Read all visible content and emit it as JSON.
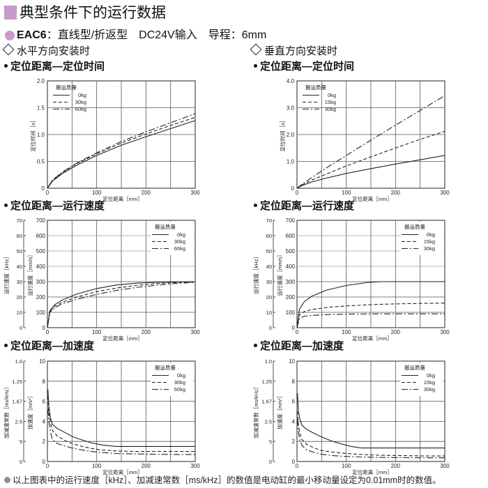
{
  "colors": {
    "accent": "#c79ac8",
    "grid": "#555555",
    "curve": "#222222",
    "highlight_grid": "#9a9a9a"
  },
  "header": {
    "title": "典型条件下的运行数据"
  },
  "model": {
    "name": "EAC6",
    "desc": "：直线型/折返型　DC24V输入　导程：6mm"
  },
  "orientation": {
    "left": "水平方向安装时",
    "right": "垂直方向安装时"
  },
  "sections": {
    "time": "定位距离—定位时间",
    "speed": "定位距离—运行速度",
    "accel": "定位距离—加速度"
  },
  "footnote": "以上图表中的运行速度［kHz］、加减速常数［ms/kHz］的数值是电动缸的最小移动量设定为0.01mm时的数值。",
  "chart_data": [
    {
      "id": "h-time",
      "type": "line",
      "title": "",
      "xlabel": "定位距离［mm］",
      "ylabel": "定位时间［s］",
      "xlim": [
        0,
        300
      ],
      "ylim": [
        0,
        2.0
      ],
      "xticks": [
        "0",
        "100",
        "200",
        "300"
      ],
      "yticks": [
        "0",
        "0.5",
        "1.0",
        "1.5",
        "2.0"
      ],
      "legend": {
        "title": "搬运质量",
        "position": "top-left",
        "entries": [
          "0kg",
          "30kg",
          "60kg"
        ]
      },
      "series": [
        {
          "name": "0kg",
          "dash": "solid",
          "x": [
            0,
            10,
            30,
            60,
            100,
            150,
            200,
            250,
            300
          ],
          "y": [
            0,
            0.13,
            0.27,
            0.43,
            0.61,
            0.8,
            0.96,
            1.11,
            1.26
          ]
        },
        {
          "name": "30kg",
          "dash": "dash",
          "x": [
            0,
            10,
            30,
            60,
            100,
            150,
            200,
            250,
            300
          ],
          "y": [
            0,
            0.14,
            0.29,
            0.46,
            0.64,
            0.84,
            1.01,
            1.17,
            1.32
          ]
        },
        {
          "name": "60kg",
          "dash": "dashdot",
          "x": [
            0,
            10,
            30,
            60,
            100,
            150,
            200,
            250,
            300
          ],
          "y": [
            0,
            0.15,
            0.3,
            0.47,
            0.66,
            0.87,
            1.05,
            1.22,
            1.39
          ]
        }
      ]
    },
    {
      "id": "v-time",
      "type": "line",
      "title": "",
      "xlabel": "定位距离［mm］",
      "ylabel": "定位时间［s］",
      "xlim": [
        0,
        300
      ],
      "ylim": [
        0,
        4.0
      ],
      "xticks": [
        "0",
        "100",
        "200",
        "300"
      ],
      "yticks": [
        "0",
        "1.0",
        "2.0",
        "3.0",
        "4.0"
      ],
      "legend": {
        "title": "搬运质量",
        "position": "top-left",
        "entries": [
          "0kg",
          "15kg",
          "30kg"
        ]
      },
      "series": [
        {
          "name": "0kg",
          "dash": "solid",
          "x": [
            0,
            10,
            30,
            60,
            100,
            150,
            200,
            250,
            300
          ],
          "y": [
            0,
            0.1,
            0.23,
            0.38,
            0.55,
            0.73,
            0.9,
            1.06,
            1.22
          ]
        },
        {
          "name": "15kg",
          "dash": "dash",
          "x": [
            0,
            10,
            30,
            60,
            100,
            150,
            200,
            250,
            300
          ],
          "y": [
            0,
            0.12,
            0.3,
            0.53,
            0.83,
            1.17,
            1.5,
            1.82,
            2.12
          ]
        },
        {
          "name": "30kg",
          "dash": "dashdot",
          "x": [
            0,
            10,
            30,
            60,
            100,
            150,
            200,
            250,
            300
          ],
          "y": [
            0,
            0.14,
            0.4,
            0.76,
            1.22,
            1.79,
            2.35,
            2.9,
            3.45
          ]
        }
      ]
    },
    {
      "id": "h-speed",
      "type": "line",
      "title": "",
      "xlabel": "定位距离［mm］",
      "ylabel": "运行速度［mm/s］",
      "ylabel2": "运行速度［kHz］",
      "xlim": [
        0,
        300
      ],
      "ylim": [
        0,
        700
      ],
      "xticks": [
        "0",
        "100",
        "200",
        "300"
      ],
      "yticks": [
        "0",
        "100",
        "200",
        "300",
        "400",
        "500",
        "600",
        "700"
      ],
      "y2ticks": [
        "0",
        "10",
        "20",
        "30",
        "40",
        "50",
        "60",
        "70"
      ],
      "legend": {
        "title": "搬运质量",
        "position": "top-right",
        "entries": [
          "0kg",
          "30kg",
          "60kg"
        ]
      },
      "series": [
        {
          "name": "0kg",
          "dash": "solid",
          "x": [
            0,
            5,
            15,
            30,
            60,
            100,
            140,
            180,
            220,
            260,
            300
          ],
          "y": [
            0,
            110,
            150,
            180,
            220,
            255,
            278,
            290,
            296,
            298,
            300
          ]
        },
        {
          "name": "30kg",
          "dash": "dash",
          "x": [
            0,
            5,
            15,
            30,
            60,
            100,
            140,
            180,
            220,
            260,
            300
          ],
          "y": [
            0,
            105,
            140,
            165,
            200,
            235,
            258,
            275,
            287,
            294,
            298
          ]
        },
        {
          "name": "60kg",
          "dash": "dashdot",
          "x": [
            0,
            5,
            15,
            30,
            60,
            100,
            140,
            180,
            220,
            260,
            300
          ],
          "y": [
            0,
            100,
            130,
            155,
            185,
            217,
            243,
            262,
            276,
            288,
            295
          ]
        }
      ]
    },
    {
      "id": "v-speed",
      "type": "line",
      "title": "",
      "xlabel": "定位距离［mm］",
      "ylabel": "运行速度［mm/s］",
      "ylabel2": "运行速度［kHz］",
      "xlim": [
        0,
        300
      ],
      "ylim": [
        0,
        700
      ],
      "xticks": [
        "0",
        "100",
        "200",
        "300"
      ],
      "yticks": [
        "0",
        "100",
        "200",
        "300",
        "400",
        "500",
        "600",
        "700"
      ],
      "y2ticks": [
        "0",
        "10",
        "20",
        "30",
        "40",
        "50",
        "60",
        "70"
      ],
      "legend": {
        "title": "搬运质量",
        "position": "top-right",
        "entries": [
          "0kg",
          "15kg",
          "30kg"
        ]
      },
      "series": [
        {
          "name": "0kg",
          "dash": "solid",
          "x": [
            0,
            5,
            15,
            30,
            60,
            100,
            140,
            170,
            200,
            250,
            300
          ],
          "y": [
            0,
            120,
            170,
            205,
            245,
            275,
            293,
            300,
            300,
            300,
            300
          ]
        },
        {
          "name": "15kg",
          "dash": "dash",
          "x": [
            0,
            5,
            15,
            30,
            60,
            100,
            150,
            200,
            250,
            300
          ],
          "y": [
            0,
            85,
            105,
            118,
            132,
            142,
            150,
            155,
            158,
            160
          ]
        },
        {
          "name": "30kg",
          "dash": "dashdot",
          "x": [
            0,
            5,
            15,
            30,
            60,
            100,
            150,
            200,
            250,
            300
          ],
          "y": [
            0,
            60,
            75,
            80,
            85,
            88,
            90,
            90,
            90,
            90
          ]
        }
      ]
    },
    {
      "id": "h-accel",
      "type": "line",
      "title": "",
      "xlabel": "定位距离［mm］",
      "ylabel": "加速度［m/s²］",
      "ylabel2": "加减速常数［ms/kHz］",
      "xlim": [
        0,
        300
      ],
      "ylim": [
        0,
        10
      ],
      "xticks": [
        "0",
        "100",
        "200",
        "300"
      ],
      "yticks": [
        "0",
        "2",
        "4",
        "6",
        "8",
        "10"
      ],
      "y2ticks": [
        "0",
        "5",
        "2.5",
        "1.67",
        "1.25",
        "1.0"
      ],
      "legend": {
        "title": "搬运质量",
        "position": "top-right",
        "entries": [
          "0kg",
          "30kg",
          "60kg"
        ]
      },
      "series": [
        {
          "name": "0kg",
          "dash": "solid",
          "x": [
            1,
            3,
            6,
            10,
            20,
            35,
            50,
            70,
            90,
            110,
            140,
            180,
            220,
            260,
            300
          ],
          "y": [
            7.2,
            5.5,
            4.4,
            3.7,
            3.3,
            2.9,
            2.5,
            2.15,
            1.85,
            1.65,
            1.5,
            1.5,
            1.5,
            1.5,
            1.5
          ]
        },
        {
          "name": "30kg",
          "dash": "dash",
          "x": [
            1,
            3,
            6,
            10,
            20,
            35,
            50,
            70,
            90,
            110,
            140,
            180,
            220,
            260,
            300
          ],
          "y": [
            6.5,
            4.8,
            3.9,
            3.1,
            2.55,
            2.1,
            1.8,
            1.5,
            1.3,
            1.15,
            1.05,
            1.0,
            1.0,
            1.0,
            1.0
          ]
        },
        {
          "name": "60kg",
          "dash": "dashdot",
          "x": [
            1,
            3,
            6,
            10,
            20,
            35,
            50,
            70,
            90,
            110,
            140,
            180,
            220,
            260,
            300
          ],
          "y": [
            5.2,
            4.0,
            3.0,
            2.2,
            1.8,
            1.55,
            1.35,
            1.15,
            1.0,
            0.9,
            0.8,
            0.75,
            0.72,
            0.7,
            0.7
          ]
        }
      ]
    },
    {
      "id": "v-accel",
      "type": "line",
      "title": "",
      "xlabel": "定位距离［mm］",
      "ylabel": "加速度［m/s²］",
      "ylabel2": "加减速常数［ms/kHz］",
      "xlim": [
        0,
        300
      ],
      "ylim": [
        0,
        10
      ],
      "xticks": [
        "0",
        "100",
        "200",
        "300"
      ],
      "yticks": [
        "0",
        "2",
        "4",
        "6",
        "8",
        "10"
      ],
      "y2ticks": [
        "0",
        "5",
        "2.5",
        "1.67",
        "1.25",
        "1.0"
      ],
      "legend": {
        "title": "搬运质量",
        "position": "top-right",
        "entries": [
          "0kg",
          "15kg",
          "30kg"
        ]
      },
      "series": [
        {
          "name": "0kg",
          "dash": "solid",
          "x": [
            1,
            3,
            6,
            10,
            20,
            35,
            50,
            70,
            90,
            110,
            130,
            160,
            200,
            250,
            300
          ],
          "y": [
            6.8,
            5.0,
            4.2,
            3.6,
            3.2,
            2.8,
            2.45,
            2.05,
            1.75,
            1.5,
            1.35,
            1.35,
            1.35,
            1.35,
            1.35
          ]
        },
        {
          "name": "15kg",
          "dash": "dash",
          "x": [
            1,
            3,
            6,
            10,
            20,
            35,
            50,
            70,
            100,
            130,
            170,
            220,
            260,
            300
          ],
          "y": [
            5.0,
            3.6,
            2.8,
            2.2,
            1.7,
            1.35,
            1.1,
            0.95,
            0.8,
            0.7,
            0.62,
            0.58,
            0.55,
            0.55
          ]
        },
        {
          "name": "30kg",
          "dash": "dashdot",
          "x": [
            1,
            3,
            6,
            10,
            20,
            35,
            50,
            70,
            100,
            130,
            170,
            220,
            260,
            300
          ],
          "y": [
            4.2,
            2.9,
            2.1,
            1.6,
            1.15,
            0.9,
            0.72,
            0.6,
            0.5,
            0.45,
            0.4,
            0.38,
            0.37,
            0.37
          ]
        }
      ]
    }
  ]
}
